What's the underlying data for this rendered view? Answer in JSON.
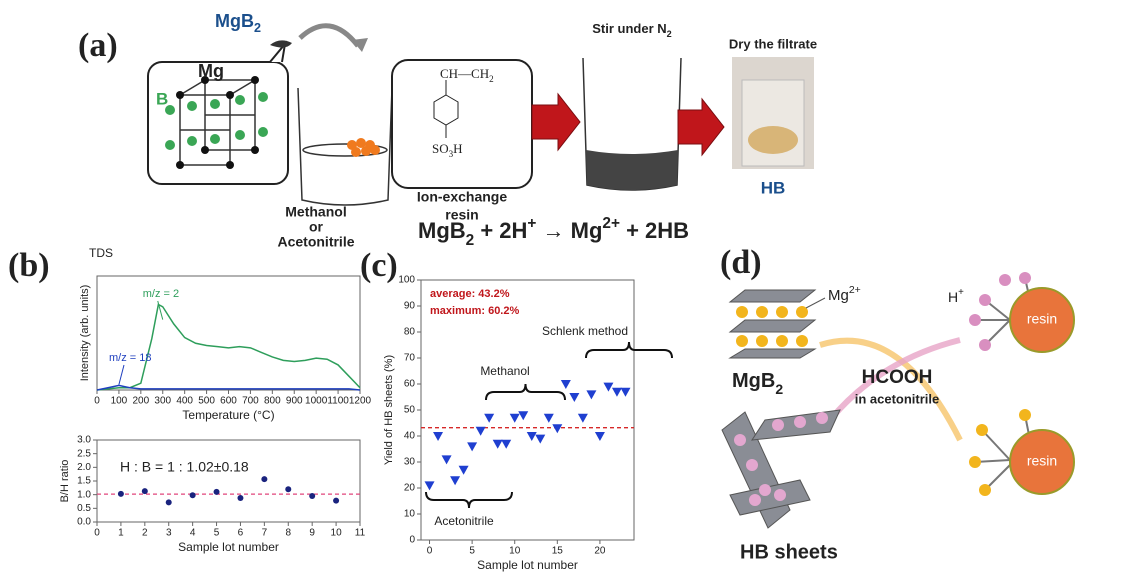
{
  "panels": {
    "a": {
      "label": "(a)",
      "mgb2": [
        {
          "t": "MgB"
        },
        {
          "t": "2",
          "sub": true
        }
      ],
      "mg": "Mg",
      "b": "B",
      "polymer": [
        {
          "t": "CH—CH"
        },
        {
          "t": "2",
          "sub": true
        }
      ],
      "acid": [
        {
          "t": "SO"
        },
        {
          "t": "3",
          "sub": true
        },
        {
          "t": "H"
        }
      ],
      "solvent": [
        "Methanol",
        "or",
        "Acetonitrile"
      ],
      "resin": [
        "Ion-exchange",
        "resin"
      ],
      "stir": [
        {
          "t": "Stir under N"
        },
        {
          "t": "2",
          "sub": true
        }
      ],
      "dry": "Dry the filtrate",
      "product": "HB",
      "equation": [
        {
          "t": "MgB"
        },
        {
          "t": "2",
          "sub": true
        },
        {
          "t": " + 2H"
        },
        {
          "t": "+",
          "sup": true
        },
        {
          "t": " → Mg"
        },
        {
          "t": "2+",
          "sup": true
        },
        {
          "t": " + 2HB"
        }
      ]
    },
    "b": {
      "label": "(b)"
    },
    "c": {
      "label": "(c)"
    },
    "d": {
      "label": "(d)",
      "mg_ion": [
        {
          "t": "Mg"
        },
        {
          "t": "2+",
          "sup": true
        }
      ],
      "proton": [
        {
          "t": "H"
        },
        {
          "t": "+",
          "sup": true
        }
      ],
      "resin": [
        "resin",
        "resin"
      ],
      "mgb2": [
        {
          "t": "MgB"
        },
        {
          "t": "2",
          "sub": true
        }
      ],
      "reagent": "HCOOH",
      "solvent": "in acetonitrile",
      "product": "HB sheets"
    }
  },
  "chart_data": [
    {
      "type": "line",
      "title": "TDS",
      "x_label": "Temperature (°C)",
      "y_label": "Intensity (arb. units)",
      "x": [
        0,
        50,
        100,
        150,
        200,
        250,
        280,
        300,
        350,
        400,
        450,
        500,
        550,
        600,
        650,
        700,
        750,
        800,
        850,
        900,
        950,
        1000,
        1050,
        1100,
        1150,
        1200
      ],
      "series": [
        {
          "name": "m/z = 2",
          "color": "#2e9e5b",
          "values": [
            0,
            1,
            2,
            2,
            6,
            45,
            75,
            73,
            58,
            46,
            41,
            39,
            38,
            37,
            38,
            37,
            33,
            29,
            26,
            25,
            26,
            28,
            27,
            22,
            12,
            2
          ]
        },
        {
          "name": "m/z = 18",
          "color": "#1f3fbf",
          "values": [
            0,
            2,
            4,
            2,
            1,
            1,
            1,
            1,
            1,
            1,
            1,
            1,
            1,
            1,
            1,
            1,
            1,
            1,
            1,
            1,
            1,
            1,
            1,
            1,
            1,
            0
          ]
        }
      ],
      "xlim": [
        0,
        1200
      ],
      "ylim": [
        0,
        100
      ],
      "xticks": [
        0,
        100,
        200,
        300,
        400,
        500,
        600,
        700,
        800,
        900,
        1000,
        1100,
        1200
      ]
    },
    {
      "type": "scatter",
      "x_label": "Sample lot number",
      "y_label": "B/H ratio",
      "color": "#1a237e",
      "x": [
        1,
        2,
        3,
        4,
        5,
        6,
        7,
        8,
        9,
        10
      ],
      "values": [
        1.03,
        1.13,
        0.72,
        0.98,
        1.1,
        0.88,
        1.57,
        1.2,
        0.95,
        0.78
      ],
      "reference_line": 1.02,
      "reference_color": "#e0457b",
      "annotations": [
        "H : B = 1 : 1.02±0.18"
      ],
      "xlim": [
        0,
        11
      ],
      "ylim": [
        0,
        3
      ],
      "xticks": [
        0,
        1,
        2,
        3,
        4,
        5,
        6,
        7,
        8,
        9,
        10,
        11
      ],
      "yticks": [
        {
          "value": 0,
          "label": "0.0"
        },
        {
          "value": 0.5,
          "label": "0.5"
        },
        {
          "value": 1,
          "label": "1.0"
        },
        {
          "value": 1.5,
          "label": "1.5"
        },
        {
          "value": 2,
          "label": "2.0"
        },
        {
          "value": 2.5,
          "label": "2.5"
        },
        {
          "value": 3,
          "label": "3.0"
        }
      ]
    },
    {
      "type": "scatter",
      "marker": "triangle-down",
      "x_label": "Sample lot number",
      "y_label": "Yield of HB sheets (%)",
      "color": "#1f3fd0",
      "x": [
        0,
        1,
        2,
        3,
        4,
        5,
        6,
        7,
        8,
        9,
        10,
        11,
        12,
        13,
        14,
        15,
        16,
        17,
        18,
        19,
        20,
        21,
        22,
        23
      ],
      "values": [
        21,
        40,
        31,
        23,
        27,
        36,
        42,
        47,
        37,
        37,
        47,
        48,
        40,
        39,
        47,
        43,
        60,
        55,
        47,
        56,
        40,
        59,
        57,
        57
      ],
      "reference_line": 43.2,
      "reference_color": "#d62828",
      "annotations": [
        "average: 43.2%",
        "maximum: 60.2%",
        "Methanol",
        "Schlenk method",
        "Acetonitrile"
      ],
      "xlim": [
        -1,
        24
      ],
      "ylim": [
        0,
        100
      ],
      "xticks": [
        0,
        5,
        10,
        15,
        20
      ],
      "yticks": [
        0,
        10,
        20,
        30,
        40,
        50,
        60,
        70,
        80,
        90,
        100
      ]
    }
  ]
}
